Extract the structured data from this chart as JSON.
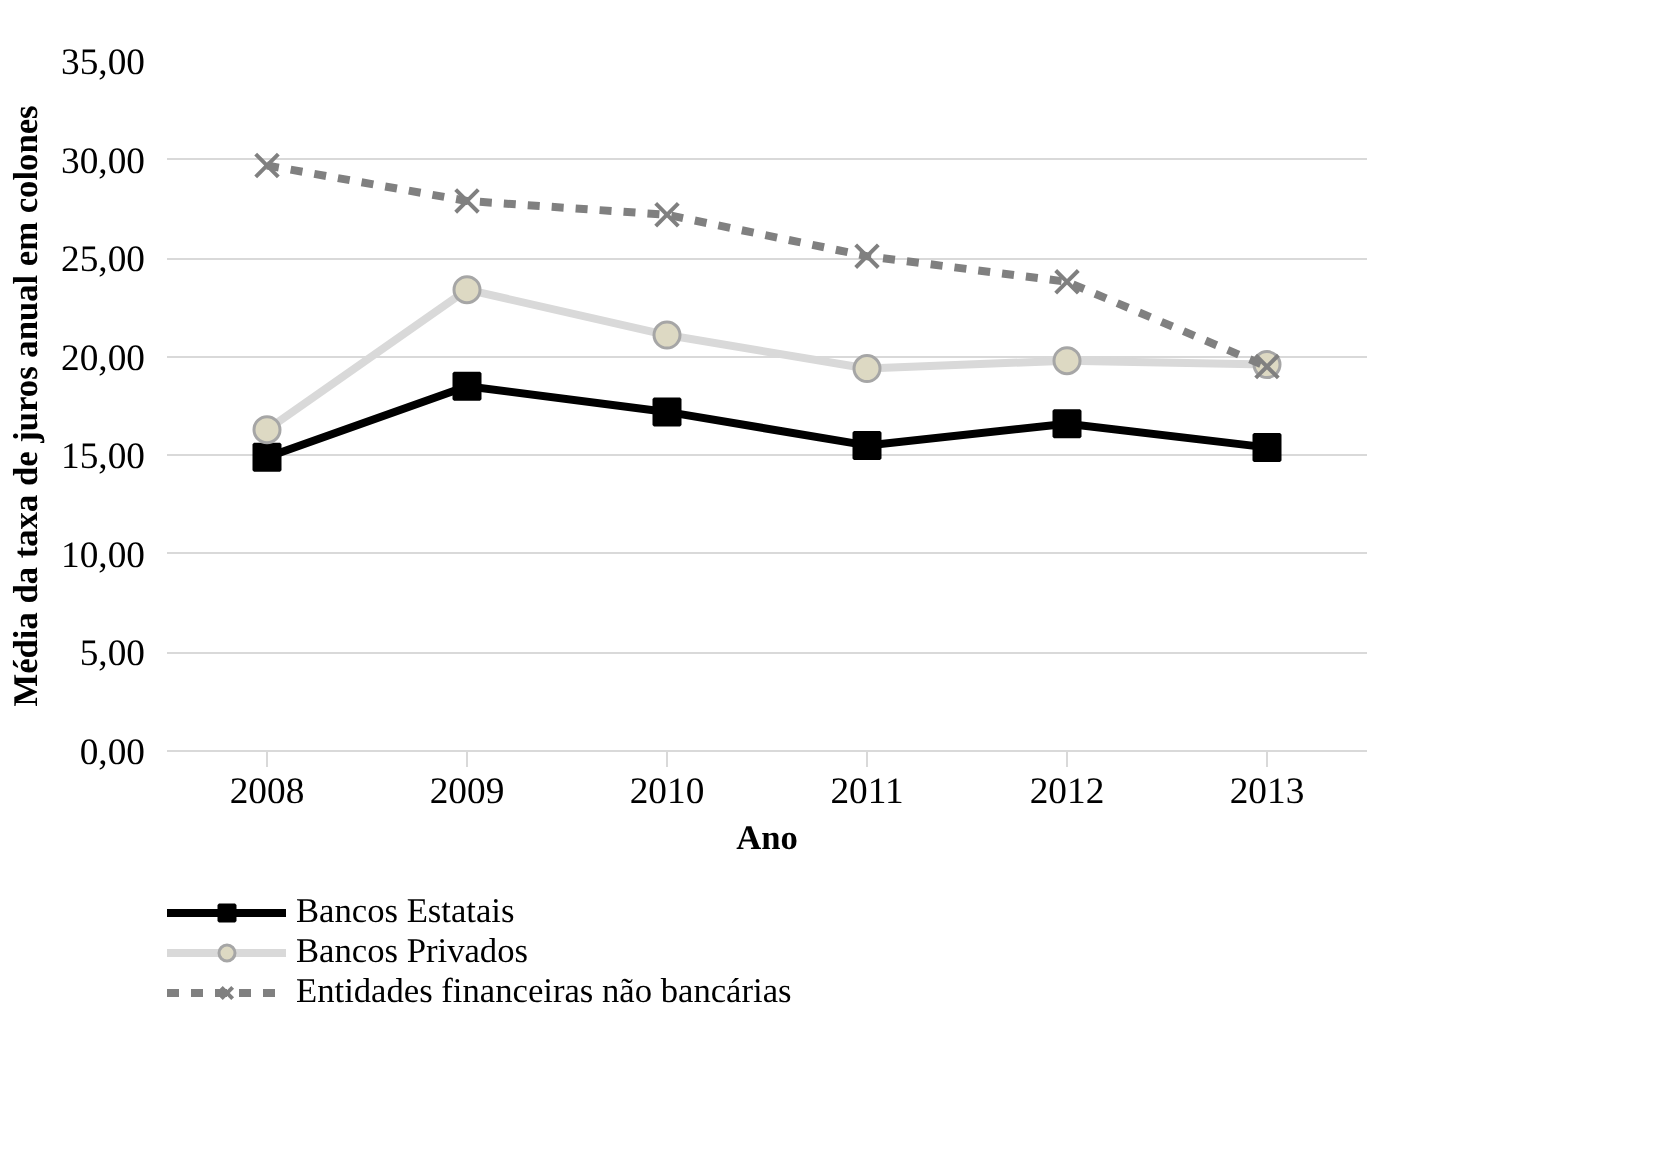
{
  "chart_data": {
    "type": "line",
    "xlabel": "Ano",
    "ylabel": "Média da taxa de juros anual em colones",
    "categories": [
      "2008",
      "2009",
      "2010",
      "2011",
      "2012",
      "2013"
    ],
    "ylim": [
      0,
      35
    ],
    "yticks": [
      {
        "value": 0,
        "label": "0,00"
      },
      {
        "value": 5,
        "label": "5,00"
      },
      {
        "value": 10,
        "label": "10,00"
      },
      {
        "value": 15,
        "label": "15,00"
      },
      {
        "value": 20,
        "label": "20,00"
      },
      {
        "value": 25,
        "label": "25,00"
      },
      {
        "value": 30,
        "label": "30,00"
      },
      {
        "value": 35,
        "label": "35,00"
      }
    ],
    "grid": "y",
    "legend": "bottom",
    "series": [
      {
        "name": "Bancos Estatais",
        "color": "#000000",
        "marker": "square",
        "line_style": "solid",
        "values": [
          14.9,
          18.5,
          17.2,
          15.5,
          16.6,
          15.4
        ]
      },
      {
        "name": "Bancos Privados",
        "color": "#d9d9d9",
        "marker": "circle",
        "line_style": "solid",
        "values": [
          16.3,
          23.4,
          21.1,
          19.4,
          19.8,
          19.6
        ]
      },
      {
        "name": "Entidades financeiras não bancárias",
        "color": "#808080",
        "marker": "cross",
        "line_style": "dashed",
        "values": [
          29.7,
          27.9,
          27.2,
          25.1,
          23.8,
          19.5
        ]
      }
    ]
  }
}
